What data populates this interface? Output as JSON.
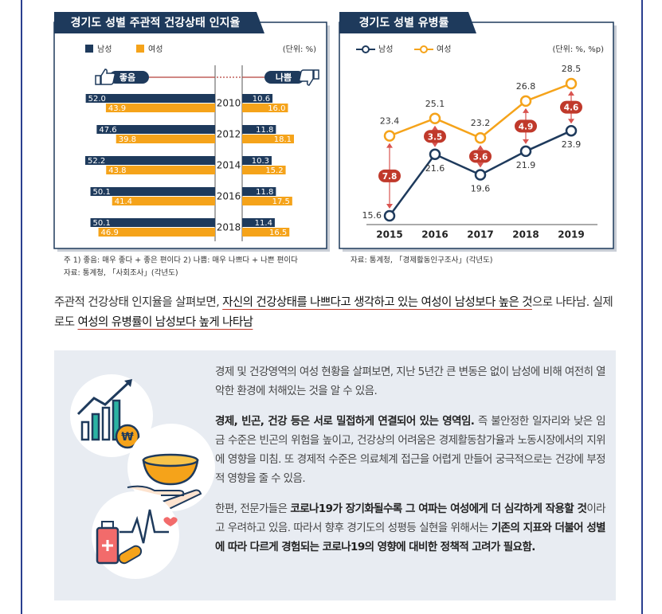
{
  "chart_data": [
    {
      "type": "butterfly",
      "title": "경기도 성별 주관적 건강상태 인지율",
      "unit_label": "(단위: %)",
      "left_label": "좋음",
      "right_label": "나쁨",
      "categories": [
        "2010",
        "2012",
        "2014",
        "2016",
        "2018"
      ],
      "series": [
        {
          "name": "남성",
          "color": "#1e3a5c",
          "good": {
            "values": [
              52.0,
              47.6,
              52.2,
              50.1,
              50.1
            ],
            "value_labels": [
              "52.0",
              "47.6",
              "52.2",
              "50.1",
              "50.1"
            ]
          },
          "bad": {
            "values": [
              10.6,
              11.8,
              10.3,
              11.8,
              11.4
            ],
            "value_labels": [
              "10.6",
              "11.8",
              "10.3",
              "11.8",
              "11.4"
            ]
          }
        },
        {
          "name": "여성",
          "color": "#f5a31a",
          "good": {
            "values": [
              43.9,
              39.8,
              43.8,
              41.4,
              46.9
            ],
            "value_labels": [
              "43.9",
              "39.8",
              "43.8",
              "41.4",
              "46.9"
            ]
          },
          "bad": {
            "values": [
              16.0,
              18.1,
              15.2,
              17.5,
              16.5
            ],
            "value_labels": [
              "16.0",
              "18.1",
              "15.2",
              "17.5",
              "16.5"
            ]
          }
        }
      ],
      "notes": [
        "주 1) 좋음: 매우 좋다 + 좋은 편이다 2) 나쁨: 매우 나쁘다 + 나쁜 편이다",
        "자료: 통계청, 「사회조사」(각년도)"
      ]
    },
    {
      "type": "line",
      "title": "경기도 성별 유병률",
      "unit_label": "(단위: %, %p)",
      "categories": [
        "2015",
        "2016",
        "2017",
        "2018",
        "2019"
      ],
      "series": [
        {
          "name": "남성",
          "color": "#1e3a5c",
          "values": [
            15.6,
            21.6,
            19.6,
            21.9,
            23.9
          ]
        },
        {
          "name": "여성",
          "color": "#f5a31a",
          "values": [
            23.4,
            25.1,
            23.2,
            26.8,
            28.5
          ]
        }
      ],
      "gaps": {
        "color": "#c0392b",
        "values": [
          7.8,
          3.5,
          3.6,
          4.9,
          4.6
        ]
      },
      "notes": [
        "자료: 통계청, 「경제활동인구조사」(각년도)"
      ]
    }
  ],
  "summary": [
    "주관적 건강상태 인지율을 살펴보면, ",
    "자신의 건강상태를 나쁘다고 생각하고 있는 여성이 남성보다 높은 것",
    "으로 나타남. 실제로도 ",
    "여성의 유병률이 남성보다 높게 나타남"
  ],
  "box": {
    "paragraphs": [
      [
        "경제 및 건강영역의 여성 현황을 살펴보면, 지난 5년간 큰 변동은 없이 남성에 비해 여전히 열악한 환경에 처해있는 것을 알 수 있음."
      ],
      [
        "경제, 빈곤, 건강 등은 서로 밀접하게 연결되어 있는 영역임.",
        " 즉 불안정한 일자리와 낮은 임금 수준은 빈곤의 위험을 높이고, 건강상의 어려움은 경제활동참가율과 노동시장에서의 지위에 영향을 미침. 또 경제적 수준은 의료체계 접근을 어렵게 만들어 궁극적으로는 건강에 부정적 영향을 줄 수 있음."
      ],
      [
        "한편, 전문가들은 ",
        "코로나19가 장기화될수록 그 여파는 여성에게 더 심각하게 작용할 것",
        "이라고 우려하고 있음. 따라서 향후 경기도의 성평등 실현을 위해서는 ",
        "기존의 지표와 더불어 성별에 따라 다르게 경험되는 코로나19의 영향에 대비한 정책적 고려가 필요함."
      ]
    ]
  }
}
